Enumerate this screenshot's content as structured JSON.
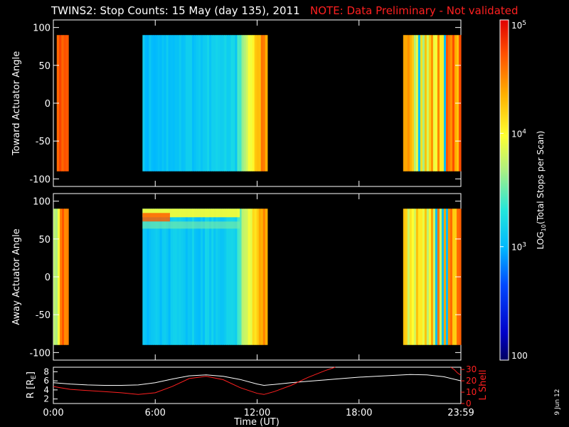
{
  "header": {
    "title": "TWINS2: Stop Counts: 15 May (day 135), 2011",
    "note": "NOTE: Data Preliminary - Not validated",
    "note_color": "#ff2020"
  },
  "footer": {
    "date_stamp": "9 Jun 12"
  },
  "chart_data": [
    {
      "type": "heatmap",
      "ylabel": "Toward Actuator Angle",
      "ylim": [
        -110,
        110
      ],
      "yticks": [
        100,
        50,
        0,
        -50,
        -100
      ],
      "xlim_hours": [
        0,
        24
      ],
      "data_y_range": [
        -90,
        90
      ],
      "colorscale": "log",
      "segments": [
        {
          "start": "00:12",
          "end": "00:53",
          "log10_value": 4.85,
          "profile": "orange"
        },
        {
          "start": "05:15",
          "end": "12:36",
          "log10_value": 3.1,
          "profile": "toward-cool"
        },
        {
          "start": "20:36",
          "end": "24:00",
          "log10_value": 4.4,
          "profile": "mixed-warm"
        }
      ]
    },
    {
      "type": "heatmap",
      "ylabel": "Away Actuator Angle",
      "ylim": [
        -110,
        110
      ],
      "yticks": [
        100,
        50,
        0,
        -50,
        -100
      ],
      "xlim_hours": [
        0,
        24
      ],
      "data_y_range": [
        -90,
        90
      ],
      "colorscale": "log",
      "segments": [
        {
          "start": "00:00",
          "end": "00:53",
          "log10_value": 4.5,
          "profile": "edge"
        },
        {
          "start": "05:15",
          "end": "12:36",
          "log10_value": 3.1,
          "profile": "away-cool"
        },
        {
          "start": "20:36",
          "end": "24:00",
          "log10_value": 4.4,
          "profile": "mixed-warm"
        }
      ]
    },
    {
      "type": "line",
      "xlabel": "Time (UT)",
      "xticks": [
        "0:00",
        "6:00",
        "12:00",
        "18:00",
        "23:59"
      ],
      "y_left": {
        "label": "R [R",
        "subscript": "E",
        "label_close": "]",
        "ticks": [
          2,
          4,
          6,
          8
        ],
        "range": [
          1,
          9
        ]
      },
      "y_right": {
        "label": "L Shell",
        "ticks": [
          0,
          10,
          20,
          30
        ],
        "range": [
          0,
          32
        ],
        "color": "#ff2020"
      },
      "series": [
        {
          "axis": "left",
          "color": "#ffffff",
          "x": [
            0,
            1,
            2,
            3,
            4,
            5,
            6,
            7,
            8,
            9,
            10,
            11,
            12,
            12.4,
            13,
            14,
            15,
            16,
            17,
            18,
            19,
            20,
            21,
            22,
            23,
            24
          ],
          "y": [
            5.6,
            5.3,
            5.1,
            5.0,
            5.0,
            5.1,
            5.6,
            6.4,
            7.1,
            7.3,
            7.0,
            6.3,
            5.3,
            5.0,
            5.2,
            5.6,
            5.9,
            6.2,
            6.5,
            6.8,
            7.0,
            7.2,
            7.4,
            7.3,
            6.9,
            6.0
          ]
        },
        {
          "axis": "right",
          "color": "#ff2020",
          "x": [
            0,
            1,
            2,
            3,
            4,
            5,
            6,
            7,
            8,
            9,
            10,
            11,
            12,
            12.4,
            13,
            14,
            15,
            16,
            16.6
          ],
          "y": [
            15.0,
            12.5,
            11.5,
            10.5,
            9.5,
            8.0,
            9.5,
            15.0,
            22.0,
            24.0,
            21.0,
            14.0,
            9.0,
            8.0,
            10.5,
            16.0,
            23.0,
            29.0,
            34.0
          ]
        },
        {
          "axis": "right",
          "color": "#ff2020",
          "x": [
            23.4,
            23.6,
            23.8,
            24.0
          ],
          "y": [
            33.0,
            30.0,
            27.0,
            25.0
          ]
        }
      ]
    },
    {
      "type": "colorbar",
      "scale": "log",
      "range": [
        100,
        100000
      ],
      "label": "LOG",
      "label_sub": "10",
      "label_rest": "(Total Stops per Scan)",
      "ticks": [
        {
          "text": "10",
          "exp": "5"
        },
        {
          "text": "10",
          "exp": "4"
        },
        {
          "text": "10",
          "exp": "3"
        },
        {
          "text": "100",
          "exp": ""
        }
      ]
    }
  ]
}
